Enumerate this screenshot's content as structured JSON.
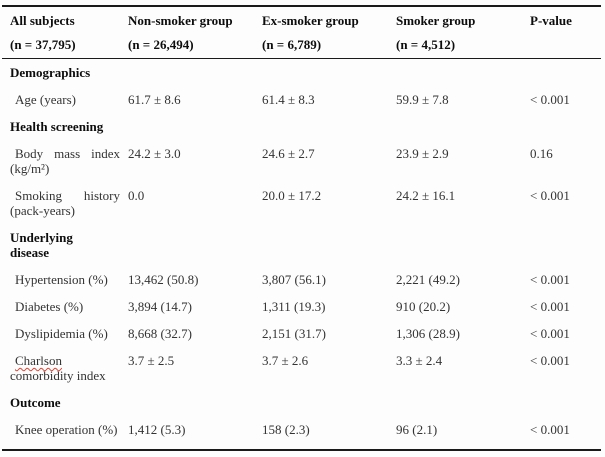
{
  "colors": {
    "border": "#1a1a1a",
    "text_body": "#333333",
    "text_bold": "#0d0d0d",
    "spellcheck_underline": "#e0402f",
    "background": "#fdfdfd"
  },
  "table": {
    "header": [
      {
        "line1": "All subjects",
        "line2": "(n = 37,795)"
      },
      {
        "line1": "Non-smoker group",
        "line2": "(n = 26,494)"
      },
      {
        "line1": "Ex-smoker group",
        "line2": "(n = 6,789)"
      },
      {
        "line1": "Smoker group",
        "line2": "(n = 4,512)"
      },
      {
        "line1": "P-value",
        "line2": ""
      }
    ],
    "rows": [
      {
        "kind": "section",
        "label": "Demographics"
      },
      {
        "kind": "data",
        "label": "Age (years)",
        "nonsmoker": "61.7 ± 8.6",
        "exsmoker": "61.4 ± 8.3",
        "smoker": "59.9 ± 7.8",
        "pvalue": "< 0.001"
      },
      {
        "kind": "section",
        "label": "Health screening"
      },
      {
        "kind": "data",
        "label": "Body mass index (kg/m²)",
        "nonsmoker": "24.2 ± 3.0",
        "exsmoker": "24.6 ± 2.7",
        "smoker": "23.9 ± 2.9",
        "pvalue": "0.16"
      },
      {
        "kind": "data",
        "label": "Smoking history (pack-years)",
        "nonsmoker": "0.0",
        "exsmoker": "20.0 ± 17.2",
        "smoker": "24.2 ± 16.1",
        "pvalue": "< 0.001"
      },
      {
        "kind": "section",
        "label": "Underlying\ndisease"
      },
      {
        "kind": "data",
        "label": "Hypertension (%)",
        "nonsmoker": "13,462 (50.8)",
        "exsmoker": "3,807 (56.1)",
        "smoker": "2,221 (49.2)",
        "pvalue": "< 0.001"
      },
      {
        "kind": "data",
        "label": "Diabetes (%)",
        "nonsmoker": "3,894 (14.7)",
        "exsmoker": "1,311 (19.3)",
        "smoker": "910 (20.2)",
        "pvalue": "< 0.001"
      },
      {
        "kind": "data",
        "label": "Dyslipidemia (%)",
        "nonsmoker": "8,668 (32.7)",
        "exsmoker": "2,151 (31.7)",
        "smoker": "1,306 (28.9)",
        "pvalue": "< 0.001"
      },
      {
        "kind": "data",
        "label_word": "Charlson",
        "label_rest": " comorbidity index",
        "nonsmoker": "3.7 ± 2.5",
        "exsmoker": "3.7 ± 2.6",
        "smoker": "3.3 ± 2.4",
        "pvalue": "< 0.001"
      },
      {
        "kind": "section",
        "label": "Outcome"
      },
      {
        "kind": "data",
        "label": "Knee operation (%)",
        "nonsmoker": "1,412 (5.3)",
        "exsmoker": "158 (2.3)",
        "smoker": "96 (2.1)",
        "pvalue": "< 0.001"
      }
    ]
  }
}
